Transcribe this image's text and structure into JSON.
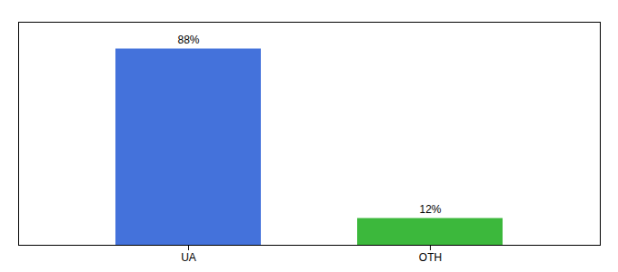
{
  "chart_data": {
    "type": "bar",
    "categories": [
      "UA",
      "OTH"
    ],
    "values": [
      88,
      12
    ],
    "value_labels": [
      "88%",
      "12%"
    ],
    "colors": [
      "#4472db",
      "#3cb83c"
    ],
    "data_labels": true,
    "ylim": [
      0,
      100
    ],
    "tick_labels": "x"
  }
}
